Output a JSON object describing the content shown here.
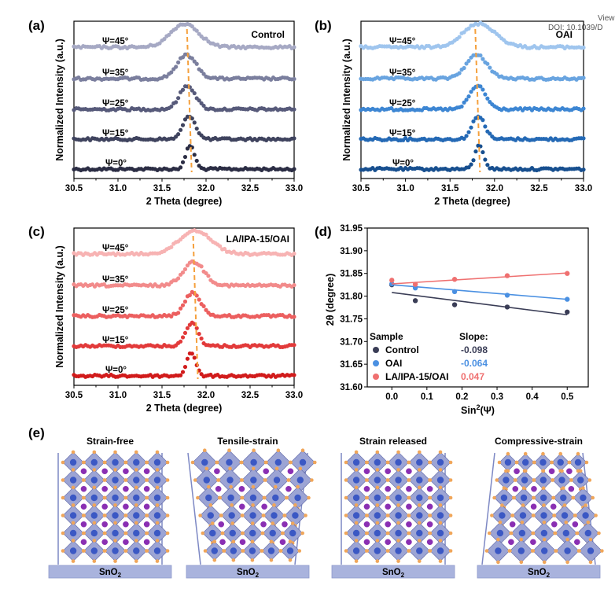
{
  "corner_text": {
    "line1": "View",
    "line2": "DOI: 10.1039/D"
  },
  "colors": {
    "control": [
      "#2b2d44",
      "#3f435e",
      "#575a7a",
      "#7b7f9e",
      "#a6a9c4"
    ],
    "oai": [
      "#174f8f",
      "#2469b5",
      "#3d86d3",
      "#69a4e0",
      "#9fc5ee"
    ],
    "la": [
      "#d11b1b",
      "#e23a3a",
      "#ec5f5f",
      "#f28b8b",
      "#f7b3b3"
    ],
    "dashed": "#f5a03c",
    "lattice_fill": "#9ca4d4",
    "lattice_edge": "#5e66a6",
    "b_site": "#3b58c4",
    "a_site": "#8a2fb3",
    "x_site": "#f0a65a",
    "substrate": "#a9b3dd"
  },
  "panels": {
    "a": {
      "label": "(a)",
      "title": "Control"
    },
    "b": {
      "label": "(b)",
      "title": "OAI"
    },
    "c": {
      "label": "(c)",
      "title": "LA/IPA-15/OAI"
    },
    "d": {
      "label": "(d)"
    },
    "e": {
      "label": "(e)"
    }
  },
  "xrd_axes": {
    "xlabel": "2 Theta (degree)",
    "ylabel": "Normalized Intensity (a.u.)",
    "xticks": [
      "30.5",
      "31.0",
      "31.5",
      "32.0",
      "32.5",
      "33.0"
    ],
    "psi_labels": [
      "Ψ=0°",
      "Ψ=15°",
      "Ψ=25°",
      "Ψ=35°",
      "Ψ=45°"
    ]
  },
  "schematic": {
    "titles": [
      "Strain-free",
      "Tensile-strain",
      "Strain released",
      "Compressive-strain"
    ],
    "substrate": "SnO",
    "substrate_sub": "2"
  },
  "chart_data": [
    {
      "type": "scatter",
      "panel": "a",
      "title": "Control",
      "xlabel": "2 Theta (degree)",
      "ylabel": "Normalized Intensity (a.u.)",
      "xlim": [
        30.5,
        33.0
      ],
      "series": [
        {
          "name": "Ψ=0°",
          "peak": 31.82,
          "width": 0.05,
          "height": 1.0
        },
        {
          "name": "Ψ=15°",
          "peak": 31.81,
          "width": 0.07,
          "height": 1.0
        },
        {
          "name": "Ψ=25°",
          "peak": 31.79,
          "width": 0.09,
          "height": 1.0
        },
        {
          "name": "Ψ=35°",
          "peak": 31.78,
          "width": 0.11,
          "height": 1.0
        },
        {
          "name": "Ψ=45°",
          "peak": 31.76,
          "width": 0.16,
          "height": 1.0
        }
      ],
      "reference_line": 31.81
    },
    {
      "type": "scatter",
      "panel": "b",
      "title": "OAI",
      "xlabel": "2 Theta (degree)",
      "ylabel": "Normalized Intensity (a.u.)",
      "xlim": [
        30.5,
        33.0
      ],
      "series": [
        {
          "name": "Ψ=0°",
          "peak": 31.83,
          "width": 0.05,
          "height": 1.0
        },
        {
          "name": "Ψ=15°",
          "peak": 31.82,
          "width": 0.07,
          "height": 1.0
        },
        {
          "name": "Ψ=25°",
          "peak": 31.81,
          "width": 0.09,
          "height": 1.0
        },
        {
          "name": "Ψ=35°",
          "peak": 31.8,
          "width": 0.12,
          "height": 1.0
        },
        {
          "name": "Ψ=45°",
          "peak": 31.83,
          "width": 0.18,
          "height": 1.0
        }
      ],
      "reference_line": 31.81
    },
    {
      "type": "scatter",
      "panel": "c",
      "title": "LA/IPA-15/OAI",
      "xlabel": "2 Theta (degree)",
      "ylabel": "Normalized Intensity (a.u.)",
      "xlim": [
        30.5,
        33.0
      ],
      "series": [
        {
          "name": "Ψ=0°",
          "peak": 31.83,
          "width": 0.05,
          "height": 1.0
        },
        {
          "name": "Ψ=15°",
          "peak": 31.84,
          "width": 0.07,
          "height": 1.0
        },
        {
          "name": "Ψ=25°",
          "peak": 31.85,
          "width": 0.09,
          "height": 1.0
        },
        {
          "name": "Ψ=35°",
          "peak": 31.86,
          "width": 0.12,
          "height": 1.0
        },
        {
          "name": "Ψ=45°",
          "peak": 31.88,
          "width": 0.18,
          "height": 1.0
        }
      ],
      "reference_line": 31.88
    },
    {
      "type": "scatter",
      "panel": "d",
      "xlabel": "Sin²(Ψ)",
      "ylabel": "2θ (degree)",
      "xlim": [
        -0.07,
        0.56
      ],
      "ylim": [
        31.6,
        31.95
      ],
      "xticks": [
        0.0,
        0.1,
        0.2,
        0.3,
        0.4,
        0.5
      ],
      "yticks": [
        31.6,
        31.65,
        31.7,
        31.75,
        31.8,
        31.85,
        31.9,
        31.95
      ],
      "legend_title": "Sample",
      "slope_title": "Slope:",
      "series": [
        {
          "name": "Control",
          "slope": "-0.098",
          "color": "#3a3d56",
          "x": [
            0.0,
            0.067,
            0.179,
            0.329,
            0.5
          ],
          "y": [
            31.825,
            31.79,
            31.781,
            31.776,
            31.765
          ],
          "fit": [
            31.808,
            31.759
          ]
        },
        {
          "name": "OAI",
          "slope": "-0.064",
          "color": "#4a90e2",
          "x": [
            0.0,
            0.067,
            0.179,
            0.329,
            0.5
          ],
          "y": [
            31.827,
            31.818,
            31.81,
            31.802,
            31.793
          ],
          "fit": [
            31.825,
            31.793
          ]
        },
        {
          "name": "LA/IPA-15/OAI",
          "slope": "0.047",
          "color": "#ef7070",
          "x": [
            0.0,
            0.067,
            0.179,
            0.329,
            0.5
          ],
          "y": [
            31.835,
            31.826,
            31.837,
            31.845,
            31.85
          ],
          "fit": [
            31.827,
            31.851
          ]
        }
      ]
    }
  ]
}
